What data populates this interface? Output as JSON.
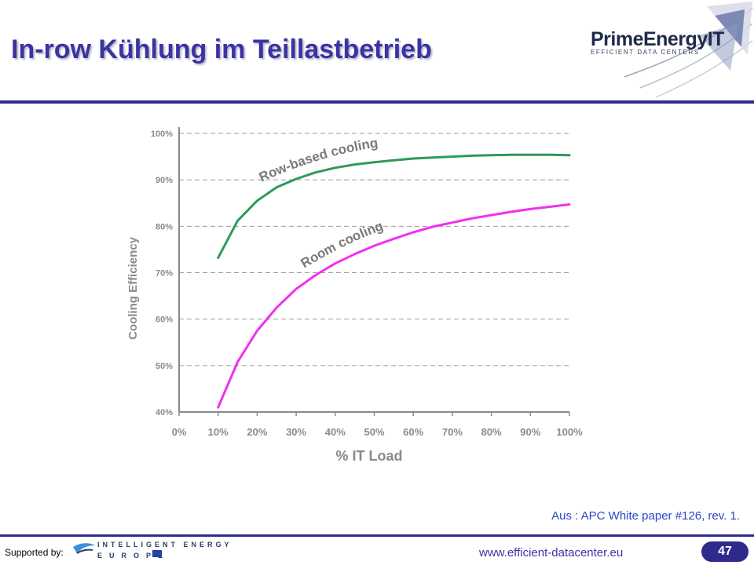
{
  "slide": {
    "title": "In-row Kühlung im Teillastbetrieb",
    "source": "Aus : APC White paper #126, rev. 1.",
    "supported_by": "Supported by:",
    "url": "www.efficient-datacenter.eu",
    "page_number": "47"
  },
  "logo": {
    "name": "PrimeEnergyIT",
    "tagline": "EFFICIENT DATA CENTERS"
  },
  "sponsor": {
    "line1": "INTELLIGENT ENERGY",
    "line2": "EUROPE"
  },
  "colors": {
    "title": "#3b33a3",
    "rule": "#2e2a8c",
    "row_series": "#2e9a5a",
    "room_series": "#f030f0",
    "axis_text": "#8a8a8a"
  },
  "chart_data": {
    "type": "line",
    "xlabel": "% IT Load",
    "ylabel": "Cooling Efficiency",
    "xlim": [
      0,
      100
    ],
    "ylim": [
      40,
      100
    ],
    "x_ticks": [
      "0%",
      "10%",
      "20%",
      "30%",
      "40%",
      "50%",
      "60%",
      "70%",
      "80%",
      "90%",
      "100%"
    ],
    "y_ticks": [
      "40%",
      "50%",
      "60%",
      "70%",
      "80%",
      "90%",
      "100%"
    ],
    "grid": "horizontal-dashed",
    "series": [
      {
        "name": "Row-based cooling",
        "x": [
          10,
          15,
          20,
          25,
          30,
          35,
          40,
          45,
          50,
          55,
          60,
          65,
          70,
          75,
          80,
          85,
          90,
          95,
          100
        ],
        "y": [
          73.2,
          81.2,
          85.5,
          88.4,
          90.2,
          91.6,
          92.6,
          93.3,
          93.8,
          94.2,
          94.6,
          94.8,
          95.0,
          95.2,
          95.3,
          95.4,
          95.4,
          95.4,
          95.3
        ]
      },
      {
        "name": "Room cooling",
        "x": [
          10,
          15,
          20,
          25,
          30,
          35,
          40,
          45,
          50,
          55,
          60,
          65,
          70,
          75,
          80,
          85,
          90,
          95,
          100
        ],
        "y": [
          41.0,
          50.8,
          57.5,
          62.5,
          66.5,
          69.5,
          72.0,
          74.0,
          75.8,
          77.3,
          78.7,
          79.9,
          80.8,
          81.7,
          82.4,
          83.1,
          83.7,
          84.2,
          84.7
        ]
      }
    ]
  }
}
